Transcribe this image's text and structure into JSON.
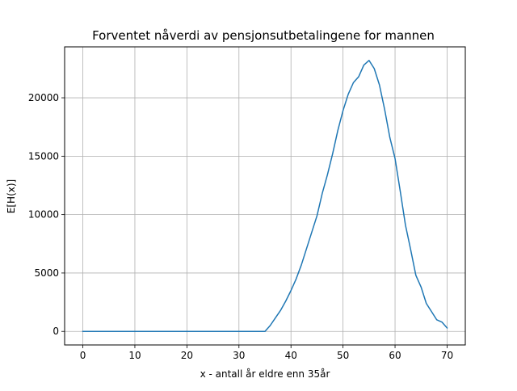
{
  "chart_data": {
    "type": "line",
    "title": "Forventet nåverdi av pensjonsutbetalingene for mannen",
    "xlabel": "x - antall år eldre enn 35år",
    "ylabel": "E[H(x)]",
    "xlim": [
      -3.5,
      73.5
    ],
    "ylim": [
      -1160,
      24360
    ],
    "xticks": [
      0,
      10,
      20,
      30,
      40,
      50,
      60,
      70
    ],
    "yticks": [
      0,
      5000,
      10000,
      15000,
      20000
    ],
    "grid": true,
    "line_color": "#1f77b4",
    "series": [
      {
        "x": [
          0,
          5,
          10,
          15,
          20,
          25,
          30,
          35,
          36,
          37,
          38,
          39,
          40,
          41,
          42,
          43,
          44,
          45,
          46,
          47,
          48,
          49,
          50,
          51,
          52,
          53,
          54,
          55,
          56,
          57,
          58,
          59,
          60,
          61,
          62,
          63,
          64,
          65,
          66,
          67,
          68,
          69,
          70
        ],
        "values": [
          0,
          0,
          0,
          0,
          0,
          0,
          0,
          0,
          500,
          1150,
          1800,
          2600,
          3500,
          4500,
          5700,
          7100,
          8500,
          9900,
          11800,
          13400,
          15200,
          17200,
          18900,
          20300,
          21300,
          21800,
          22800,
          23200,
          22500,
          21100,
          19000,
          16600,
          14800,
          12000,
          9100,
          7000,
          4800,
          3800,
          2400,
          1700,
          1000,
          800,
          300
        ]
      }
    ]
  }
}
